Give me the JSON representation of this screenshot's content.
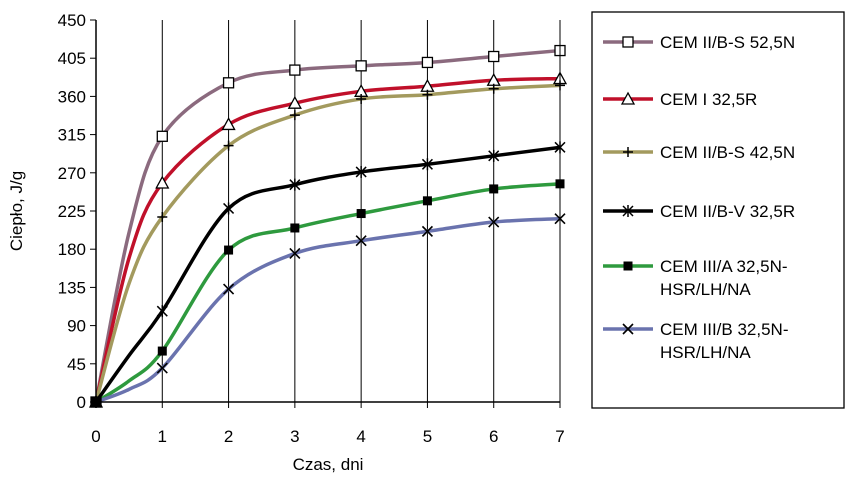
{
  "chart_data": {
    "type": "line",
    "title": "",
    "xlabel": "Czas, dni",
    "ylabel": "Ciepło, J/g",
    "xlim": [
      0,
      7
    ],
    "ylim": [
      0,
      450
    ],
    "xticks": [
      "0",
      "1",
      "2",
      "3",
      "4",
      "5",
      "6",
      "7"
    ],
    "yticks": [
      "0",
      "45",
      "90",
      "135",
      "180",
      "225",
      "270",
      "315",
      "360",
      "405",
      "450"
    ],
    "grid": "vertical",
    "legend_position": "right",
    "series": [
      {
        "name_lines": [
          "CEM II/B-S 52,5N"
        ],
        "color": "#8B6A7E",
        "marker": "square-open",
        "x": [
          0,
          0.5,
          1,
          2,
          3,
          4,
          5,
          6,
          7
        ],
        "y": [
          0,
          200,
          313,
          376,
          391,
          396,
          400,
          407,
          414
        ]
      },
      {
        "name_lines": [
          "CEM I 32,5R"
        ],
        "color": "#C0102A",
        "marker": "triangle-open",
        "x": [
          0,
          0.5,
          1,
          2,
          3,
          4,
          5,
          6,
          7
        ],
        "y": [
          0,
          170,
          258,
          327,
          352,
          366,
          372,
          379,
          381
        ]
      },
      {
        "name_lines": [
          "CEM II/B-S 42,5N"
        ],
        "color": "#A39A5E",
        "marker": "plus",
        "x": [
          0,
          0.5,
          1,
          2,
          3,
          4,
          5,
          6,
          7
        ],
        "y": [
          0,
          140,
          218,
          302,
          338,
          357,
          362,
          369,
          373
        ]
      },
      {
        "name_lines": [
          "CEM II/B-V 32,5R"
        ],
        "color": "#000000",
        "marker": "asterisk",
        "x": [
          0,
          0.5,
          1,
          2,
          3,
          4,
          5,
          6,
          7
        ],
        "y": [
          0,
          55,
          107,
          228,
          256,
          271,
          280,
          290,
          300
        ]
      },
      {
        "name_lines": [
          "CEM III/A 32,5N-",
          "HSR/LH/NA"
        ],
        "color": "#2E9A3E",
        "marker": "square-filled",
        "x": [
          0,
          0.5,
          1,
          2,
          3,
          4,
          5,
          6,
          7
        ],
        "y": [
          0,
          25,
          60,
          179,
          205,
          222,
          237,
          251,
          257
        ]
      },
      {
        "name_lines": [
          "CEM III/B 32,5N-",
          "HSR/LH/NA"
        ],
        "color": "#6A73AE",
        "marker": "x",
        "x": [
          0,
          0.5,
          1,
          2,
          3,
          4,
          5,
          6,
          7
        ],
        "y": [
          0,
          15,
          40,
          133,
          175,
          190,
          201,
          212,
          216
        ]
      }
    ]
  }
}
